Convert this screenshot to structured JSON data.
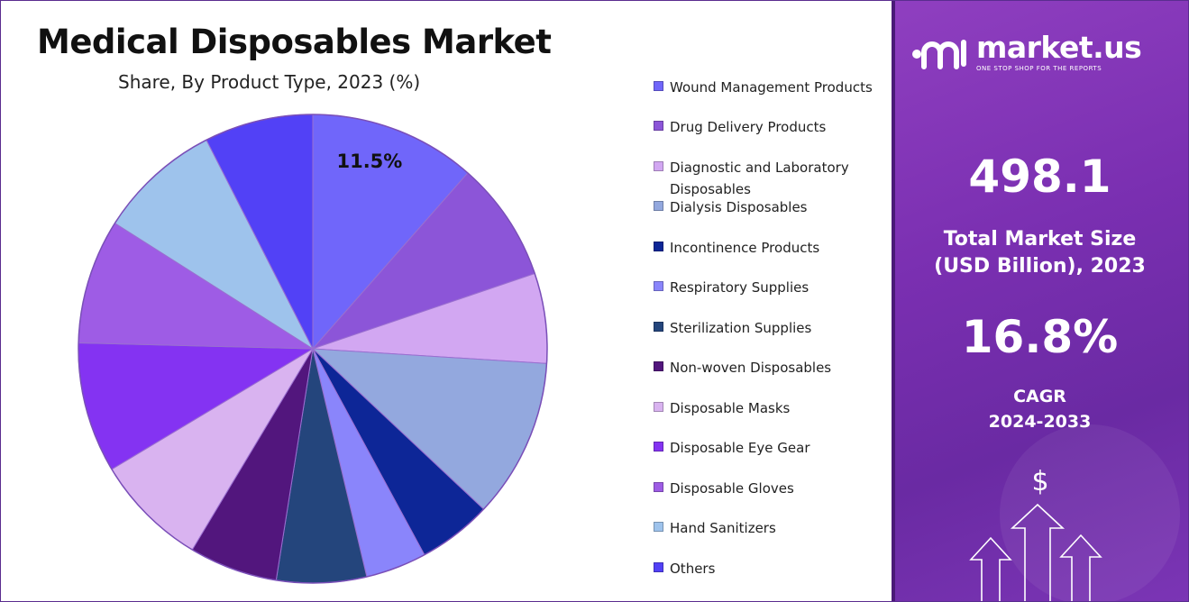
{
  "title": "Medical Disposables Market",
  "subtitle": "Share, By Product Type, 2023 (%)",
  "brand": {
    "name": "market.us",
    "tagline": "ONE STOP SHOP FOR THE REPORTS"
  },
  "stats": {
    "market_size_value": "498.1",
    "market_size_label_line1": "Total Market Size",
    "market_size_label_line2": "(USD Billion), 2023",
    "cagr_value": "16.8%",
    "cagr_label_line1": "CAGR",
    "cagr_label_line2": "2024-2033"
  },
  "icons": {
    "currency": "dollar-icon",
    "growth": "up-arrows-icon"
  },
  "chart_data": {
    "type": "pie",
    "title": "Medical Disposables Market",
    "subtitle": "Share, By Product Type, 2023 (%)",
    "legend_position": "right",
    "start_angle_deg": 0,
    "direction": "clockwise",
    "slices": [
      {
        "label": "Wound Management Products",
        "value": 11.5,
        "color": "#7066fa",
        "show_label": true
      },
      {
        "label": "Drug Delivery Products",
        "value": 8.3,
        "color": "#8c55d8",
        "show_label": false
      },
      {
        "label": "Diagnostic and Laboratory Disposables",
        "value": 6.2,
        "color": "#d2a7f2",
        "show_label": false
      },
      {
        "label": "Dialysis Disposables",
        "value": 11.0,
        "color": "#93a8de",
        "show_label": false
      },
      {
        "label": "Incontinence Products",
        "value": 5.1,
        "color": "#0d2697",
        "show_label": false
      },
      {
        "label": "Respiratory Supplies",
        "value": 4.2,
        "color": "#8a85fb",
        "show_label": false
      },
      {
        "label": "Sterilization Supplies",
        "value": 6.2,
        "color": "#24457c",
        "show_label": false
      },
      {
        "label": "Non-woven Disposables",
        "value": 6.1,
        "color": "#52167d",
        "show_label": false
      },
      {
        "label": "Disposable Masks",
        "value": 7.8,
        "color": "#d9b3f0",
        "show_label": false
      },
      {
        "label": "Disposable Eye Gear",
        "value": 9.0,
        "color": "#8433f2",
        "show_label": false
      },
      {
        "label": "Disposable Gloves",
        "value": 8.6,
        "color": "#9e5ce5",
        "show_label": false
      },
      {
        "label": "Hand Sanitizers",
        "value": 8.5,
        "color": "#9ec3ec",
        "show_label": false
      },
      {
        "label": "Others",
        "value": 7.5,
        "color": "#5241f6",
        "show_label": false
      }
    ],
    "labels_shown": [
      {
        "text": "11.5%"
      }
    ]
  }
}
